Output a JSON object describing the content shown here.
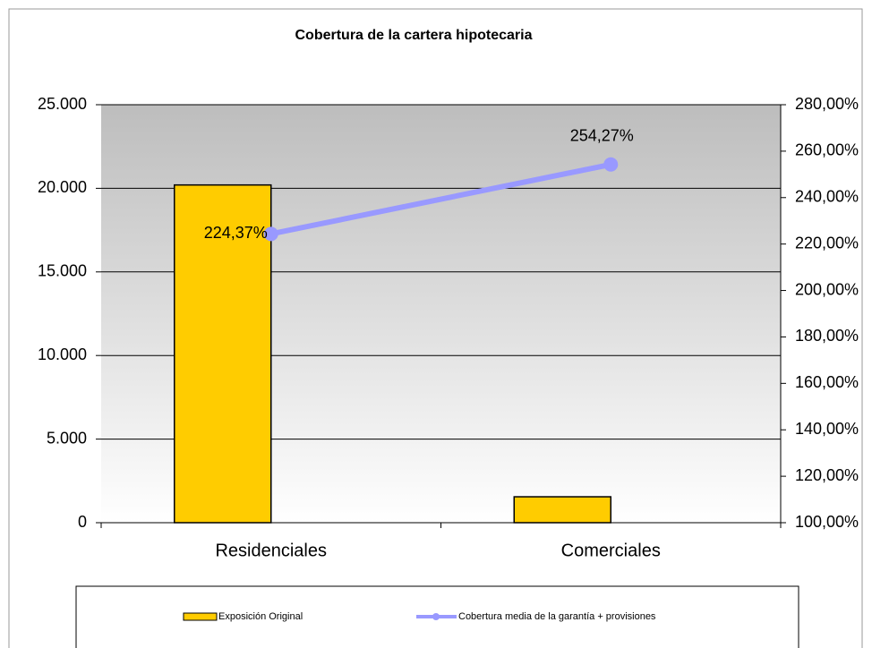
{
  "chart_data": {
    "type": "bar",
    "title": "Cobertura de la cartera hipotecaria",
    "categories": [
      "Residenciales",
      "Comerciales"
    ],
    "series": [
      {
        "name": "Exposición Original",
        "type": "bar",
        "color": "#ffcc00",
        "values": [
          20200,
          1550
        ]
      },
      {
        "name": "Cobertura media de la garantía + provisiones",
        "type": "line",
        "axis": "y2",
        "color": "#9999ff",
        "values": [
          224.37,
          254.27
        ],
        "value_labels": [
          "224,37%",
          "254,27%"
        ]
      }
    ],
    "ylim": [
      0,
      25000
    ],
    "yticks": [
      0,
      {
        "value": 5000,
        "label": "5.000"
      },
      {
        "value": 10000,
        "label": "10.000"
      },
      {
        "value": 15000,
        "label": "15.000"
      },
      {
        "value": 20000,
        "label": "20.000"
      },
      {
        "value": 25000,
        "label": "25.000"
      }
    ],
    "y2lim": [
      100,
      280
    ],
    "y2ticks": [
      {
        "value": 100,
        "label": "100,00%"
      },
      {
        "value": 120,
        "label": "120,00%"
      },
      {
        "value": 140,
        "label": "140,00%"
      },
      {
        "value": 160,
        "label": "160,00%"
      },
      {
        "value": 180,
        "label": "180,00%"
      },
      {
        "value": 200,
        "label": "200,00%"
      },
      {
        "value": 220,
        "label": "220,00%"
      },
      {
        "value": 240,
        "label": "240,00%"
      },
      {
        "value": 260,
        "label": "260,00%"
      },
      {
        "value": 280,
        "label": "280,00%"
      }
    ],
    "grid": true,
    "legend": "bottom"
  }
}
